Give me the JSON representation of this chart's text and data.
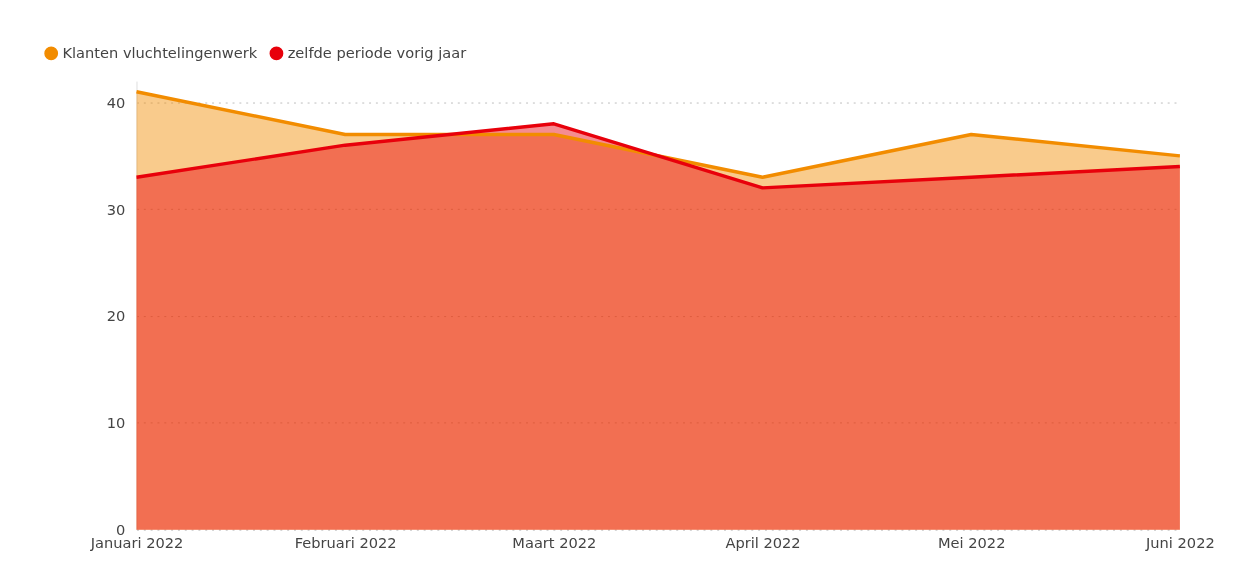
{
  "chart_data": {
    "type": "area",
    "categories": [
      "Januari 2022",
      "Februari 2022",
      "Maart 2022",
      "April 2022",
      "Mei 2022",
      "Juni 2022"
    ],
    "series": [
      {
        "name": "Klanten vluchtelingenwerk",
        "color": "#f28c00",
        "values": [
          41,
          37,
          37,
          33,
          37,
          35
        ]
      },
      {
        "name": "zelfde periode vorig jaar",
        "color": "#e8000b",
        "values": [
          33,
          36,
          38,
          32,
          33,
          34
        ]
      }
    ],
    "ylim": [
      0,
      42
    ],
    "yticks": [
      0,
      10,
      20,
      30,
      40
    ],
    "grid": "y",
    "legend": "top left",
    "line_style": "solid"
  }
}
